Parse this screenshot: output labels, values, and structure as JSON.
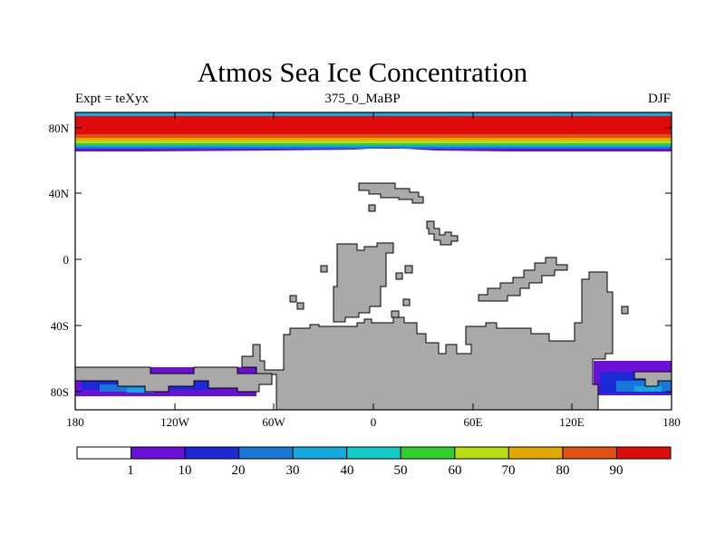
{
  "title": "Atmos Sea Ice Concentration",
  "subtitle_left": "Expt = teXyx",
  "subtitle_center": "375_0_MaBP",
  "subtitle_right": "DJF",
  "lat_ticks": [
    "80N",
    "40N",
    "0",
    "40S",
    "80S"
  ],
  "lon_ticks": [
    "180",
    "120W",
    "60W",
    "0",
    "60E",
    "120E",
    "180"
  ],
  "colorbar": {
    "colors": [
      "#ffffff",
      "#6a10d8",
      "#1c2ad6",
      "#1878d8",
      "#14a8de",
      "#12ccc8",
      "#30d030",
      "#b8dc10",
      "#e0a800",
      "#e05010",
      "#e00c0c"
    ],
    "labels": [
      "1",
      "10",
      "20",
      "30",
      "40",
      "50",
      "60",
      "70",
      "80",
      "90"
    ]
  },
  "colors": {
    "land": "#a9a9a9",
    "coast": "#000000"
  }
}
